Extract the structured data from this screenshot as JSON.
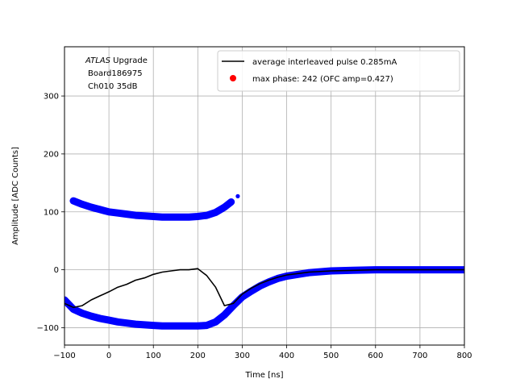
{
  "chart_data": {
    "type": "scatter",
    "title": "",
    "xlabel": "Time [ns]",
    "ylabel": "Amplitude [ADC Counts]",
    "xlim": [
      -100,
      800
    ],
    "ylim": [
      -130,
      385
    ],
    "xticks": [
      -100,
      0,
      100,
      200,
      300,
      400,
      500,
      600,
      700,
      800
    ],
    "yticks": [
      -100,
      0,
      100,
      200,
      300
    ],
    "grid": true,
    "legend_position": "top-right",
    "annotation": {
      "italic": "ATLAS",
      "line1_rest": " Upgrade",
      "line2": "Board186975",
      "line3": "Ch010 35dB"
    },
    "series": [
      {
        "name": "average interleaved pulse 0.285mA",
        "kind": "line",
        "color": "#000000",
        "points": [
          [
            -100,
            -58
          ],
          [
            -80,
            -65
          ],
          [
            -60,
            -62
          ],
          [
            -40,
            -52
          ],
          [
            -20,
            -45
          ],
          [
            0,
            -38
          ],
          [
            20,
            -30
          ],
          [
            40,
            -25
          ],
          [
            60,
            -18
          ],
          [
            80,
            -14
          ],
          [
            100,
            -8
          ],
          [
            120,
            -4
          ],
          [
            140,
            -2
          ],
          [
            160,
            0
          ],
          [
            180,
            0
          ],
          [
            200,
            2
          ],
          [
            220,
            -10
          ],
          [
            240,
            -30
          ],
          [
            260,
            -62
          ],
          [
            280,
            -58
          ],
          [
            300,
            -42
          ],
          [
            320,
            -32
          ],
          [
            340,
            -24
          ],
          [
            360,
            -18
          ],
          [
            380,
            -13
          ],
          [
            400,
            -9
          ],
          [
            450,
            -4
          ],
          [
            500,
            -2
          ],
          [
            550,
            -1
          ],
          [
            600,
            0
          ],
          [
            650,
            0
          ],
          [
            700,
            0
          ],
          [
            750,
            0
          ],
          [
            800,
            0
          ]
        ]
      },
      {
        "name": "",
        "kind": "scatter-band",
        "color": "#0000ff",
        "description": "interleaved samples",
        "points": [
          [
            -100,
            -52
          ],
          [
            -80,
            -68
          ],
          [
            -60,
            -75
          ],
          [
            -40,
            -80
          ],
          [
            -20,
            -84
          ],
          [
            0,
            -87
          ],
          [
            20,
            -90
          ],
          [
            40,
            -92
          ],
          [
            60,
            -94
          ],
          [
            80,
            -95
          ],
          [
            100,
            -96
          ],
          [
            120,
            -97
          ],
          [
            140,
            -97
          ],
          [
            160,
            -97
          ],
          [
            180,
            -97
          ],
          [
            200,
            -97
          ],
          [
            220,
            -96
          ],
          [
            240,
            -90
          ],
          [
            260,
            -78
          ],
          [
            280,
            -62
          ],
          [
            300,
            -47
          ],
          [
            320,
            -37
          ],
          [
            340,
            -28
          ],
          [
            360,
            -21
          ],
          [
            380,
            -15
          ],
          [
            400,
            -11
          ],
          [
            450,
            -5
          ],
          [
            500,
            -2
          ],
          [
            550,
            -1
          ],
          [
            600,
            0
          ],
          [
            650,
            0
          ],
          [
            700,
            0
          ],
          [
            750,
            0
          ],
          [
            800,
            0
          ]
        ]
      },
      {
        "name": "",
        "kind": "scatter-band",
        "color": "#0000ff",
        "description": "wrapped upper samples",
        "points": [
          [
            -80,
            119
          ],
          [
            -60,
            113
          ],
          [
            -40,
            108
          ],
          [
            -20,
            104
          ],
          [
            0,
            100
          ],
          [
            20,
            98
          ],
          [
            40,
            96
          ],
          [
            60,
            94
          ],
          [
            80,
            93
          ],
          [
            100,
            92
          ],
          [
            120,
            91
          ],
          [
            140,
            91
          ],
          [
            160,
            91
          ],
          [
            180,
            91
          ],
          [
            200,
            92
          ],
          [
            220,
            94
          ],
          [
            240,
            99
          ],
          [
            260,
            108
          ],
          [
            275,
            117
          ]
        ]
      },
      {
        "name": "",
        "kind": "scatter",
        "color": "#0000ff",
        "points": [
          [
            290,
            127
          ]
        ]
      },
      {
        "name": "max phase: 242 (OFC amp=0.427)",
        "kind": "marker",
        "color": "#ff0000",
        "points": []
      }
    ]
  }
}
